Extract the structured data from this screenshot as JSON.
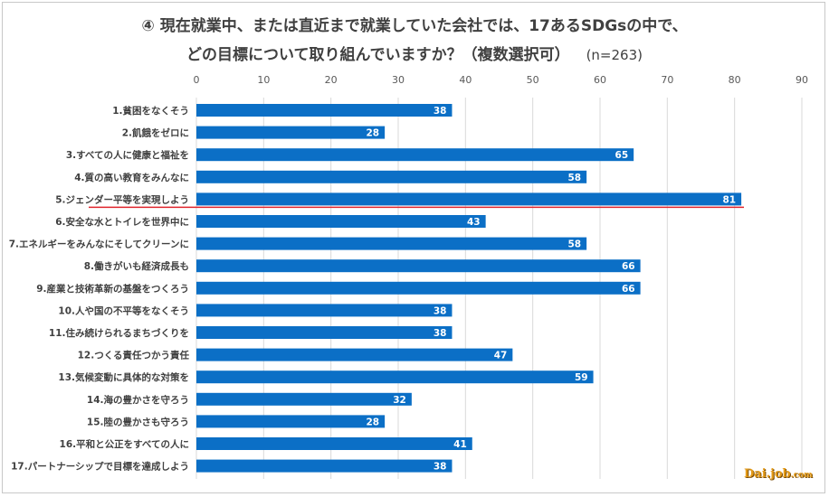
{
  "chart_data": {
    "type": "bar",
    "orientation": "horizontal",
    "title_line1": "④ 現在就業中、または直近まで就業していた会社では、17あるSDGsの中で、",
    "title_line2": "どの目標について取り組んでいますか？（複数選択可）",
    "title_note": "(n=263)",
    "categories": [
      "1.貧困をなくそう",
      "2.飢餓をゼロに",
      "3.すべての人に健康と福祉を",
      "4.質の高い教育をみんなに",
      "5.ジェンダー平等を実現しよう",
      "6.安全な水とトイレを世界中に",
      "7.エネルギーをみんなにそしてクリーンに",
      "8.働きがいも経済成長も",
      "9.産業と技術革新の基盤をつくろう",
      "10.人や国の不平等をなくそう",
      "11.住み続けられるまちづくりを",
      "12.つくる責任つかう責任",
      "13.気候変動に具体的な対策を",
      "14.海の豊かさを守ろう",
      "15.陸の豊かさも守ろう",
      "16.平和と公正をすべての人に",
      "17.パートナーシップで目標を達成しよう"
    ],
    "values": [
      38,
      28,
      65,
      58,
      81,
      43,
      58,
      66,
      66,
      38,
      38,
      47,
      59,
      32,
      28,
      41,
      38
    ],
    "xlim": [
      0,
      90
    ],
    "xticks": [
      0,
      10,
      20,
      30,
      40,
      50,
      60,
      70,
      80,
      90
    ],
    "axis_position": "top",
    "grid": true,
    "data_labels": true,
    "highlight_category": "5.ジェンダー平等を実現しよう",
    "bar_color": "#0b6fc6",
    "highlight_line_color": "#e0242c",
    "gridline_color": "#d9d9d9"
  },
  "watermark": {
    "main": "Dai.job",
    "suffix": ".com"
  }
}
